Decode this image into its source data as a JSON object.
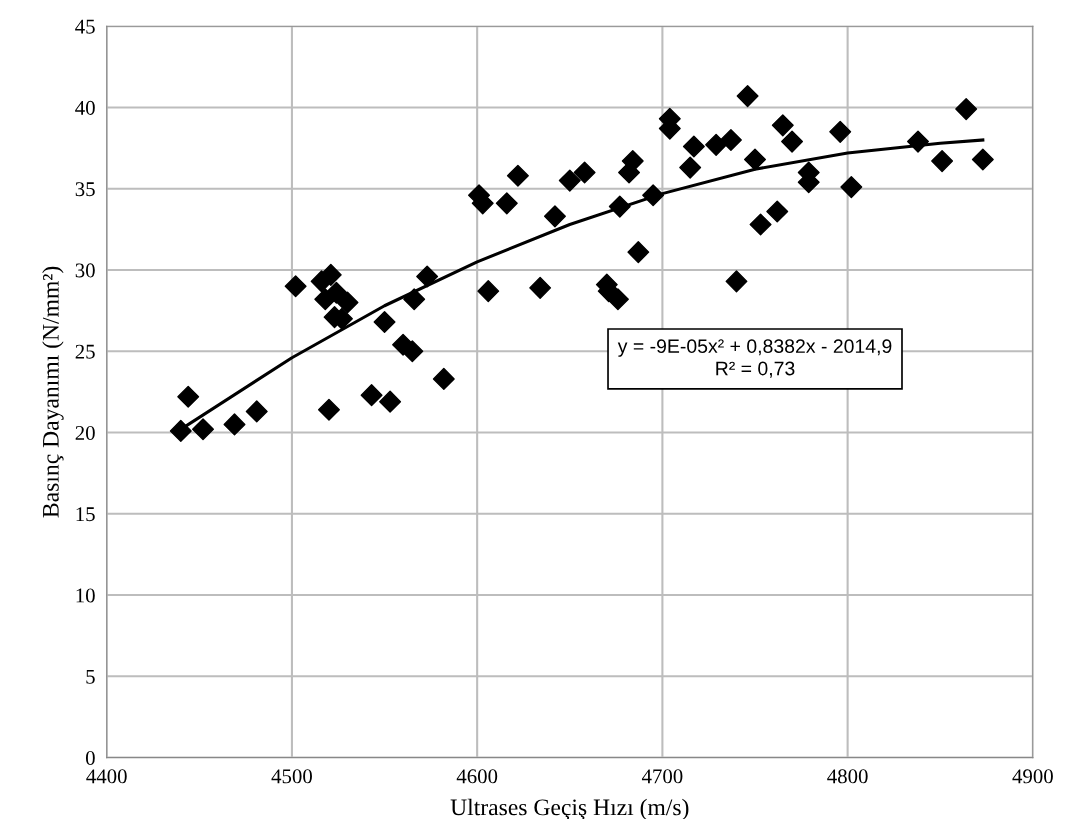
{
  "chart_data": {
    "type": "scatter",
    "xlabel": "Ultrases Geçiş Hızı (m/s)",
    "ylabel": "Basınç Dayanımı (N/mm²)",
    "xlim": [
      4400,
      4900
    ],
    "xticks": [
      4400,
      4500,
      4600,
      4700,
      4800,
      4900
    ],
    "ylim": [
      0,
      45
    ],
    "yticks": [
      0,
      5,
      10,
      15,
      20,
      25,
      30,
      35,
      40,
      45
    ],
    "grid": true,
    "marker": "diamond",
    "legend": false,
    "annotations": [
      "y = -9E-05x² + 0,8382x - 2014,9",
      "R² = 0,73"
    ],
    "series": [
      {
        "color": "#000000",
        "x": [
          4440,
          4444,
          4452,
          4469,
          4481,
          4502,
          4516,
          4518,
          4520,
          4521,
          4523,
          4524,
          4527,
          4530,
          4543,
          4550,
          4553,
          4560,
          4565,
          4566,
          4573,
          4582,
          4601,
          4603,
          4606,
          4616,
          4622,
          4634,
          4642,
          4650,
          4658,
          4670,
          4671,
          4676,
          4677,
          4682,
          4684,
          4687,
          4695,
          4704,
          4704,
          4715,
          4717,
          4729,
          4737,
          4740,
          4746,
          4750,
          4753,
          4762,
          4765,
          4770,
          4779,
          4779,
          4796,
          4802,
          4838,
          4851,
          4864,
          4873
        ],
        "values": [
          20.1,
          22.2,
          20.2,
          20.5,
          21.3,
          29.0,
          29.3,
          28.2,
          21.4,
          29.7,
          27.1,
          28.6,
          27.0,
          28.0,
          22.3,
          26.8,
          21.9,
          25.4,
          25.0,
          28.2,
          29.6,
          23.3,
          34.6,
          34.1,
          28.7,
          34.1,
          35.8,
          28.9,
          33.3,
          35.5,
          36.0,
          29.1,
          28.7,
          28.2,
          33.9,
          36.0,
          36.7,
          31.1,
          34.6,
          38.7,
          39.3,
          36.3,
          37.6,
          37.7,
          38.0,
          29.3,
          40.7,
          36.8,
          32.8,
          33.6,
          38.9,
          37.9,
          36.0,
          35.4,
          38.5,
          35.1,
          37.9,
          36.7,
          39.9,
          36.8
        ]
      },
      {
        "type": "line",
        "color": "#000000",
        "line_style": "solid",
        "marker": "none",
        "x": [
          4440,
          4500,
          4550,
          4600,
          4650,
          4700,
          4750,
          4800,
          4850,
          4873
        ],
        "values": [
          20.2,
          24.6,
          27.8,
          30.5,
          32.8,
          34.7,
          36.2,
          37.2,
          37.8,
          38.0
        ]
      }
    ]
  }
}
